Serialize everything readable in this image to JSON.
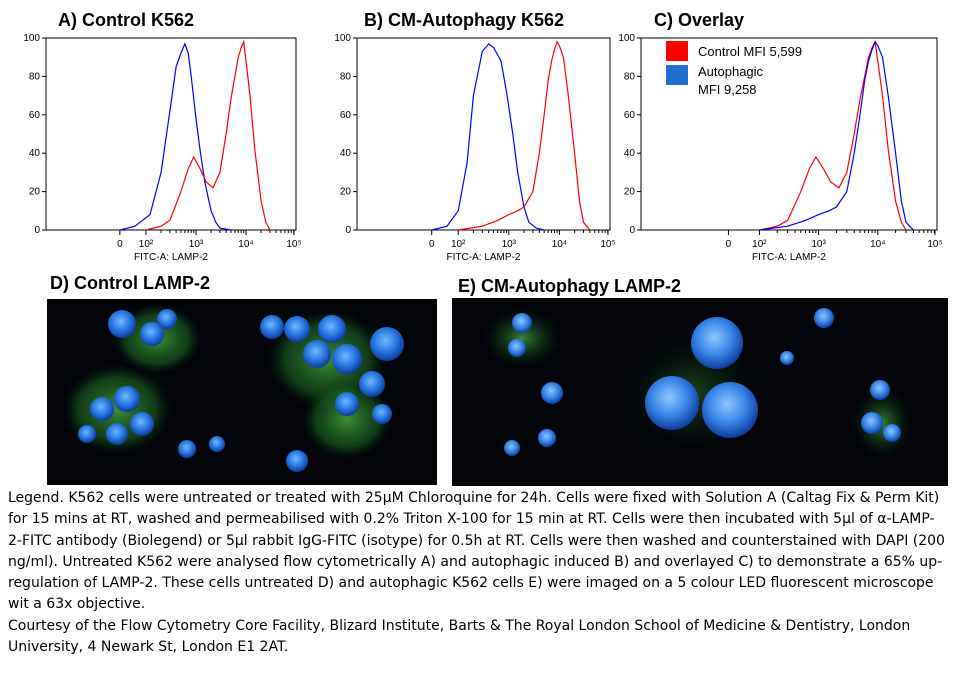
{
  "panels": {
    "a_title": "A) Control  K562",
    "b_title": "B) CM-Autophagy   K562",
    "c_title": "C) Overlay",
    "d_title": "D) Control  LAMP-2",
    "e_title": "E) CM-Autophagy  LAMP-2"
  },
  "overlay_legend": {
    "control_label": "Control MFI  5,599",
    "autophagic_label_line1": "Autophagic",
    "autophagic_label_line2": "MFI 9,258",
    "control_color": "#ff0000",
    "autophagic_color": "#1f6fd0"
  },
  "chart_data": [
    {
      "type": "line",
      "title": "A) Control  K562",
      "xlabel": "FITC-A: LAMP-2",
      "ylabel": "",
      "x_scale": "log",
      "xlim": [
        1,
        100000
      ],
      "ylim": [
        0,
        100
      ],
      "x_tick_labels": [
        "0",
        "10²",
        "10³",
        "10⁴",
        "10⁵"
      ],
      "y_tick_labels": [
        "0",
        "20",
        "40",
        "60",
        "80",
        "100"
      ],
      "series": [
        {
          "color": "#0000ff",
          "x": [
            30,
            60,
            120,
            200,
            300,
            400,
            500,
            600,
            700,
            800,
            1000,
            1200,
            1500,
            2000,
            2500,
            3000,
            5000
          ],
          "y": [
            0,
            2,
            8,
            30,
            62,
            85,
            92,
            97,
            92,
            80,
            58,
            42,
            25,
            10,
            4,
            1,
            0
          ]
        },
        {
          "color": "#ff0000",
          "x": [
            100,
            200,
            300,
            500,
            700,
            900,
            1200,
            1600,
            2200,
            3000,
            4000,
            5000,
            6000,
            7000,
            8000,
            9000,
            10000,
            12000,
            15000,
            20000,
            25000,
            30000
          ],
          "y": [
            0,
            2,
            5,
            20,
            32,
            38,
            32,
            25,
            22,
            30,
            50,
            68,
            80,
            90,
            95,
            98,
            88,
            70,
            42,
            15,
            4,
            0
          ]
        }
      ]
    },
    {
      "type": "line",
      "title": "B) CM-Autophagy   K562",
      "xlabel": "FITC-A: LAMP-2",
      "ylabel": "",
      "x_scale": "log",
      "xlim": [
        1,
        100000
      ],
      "ylim": [
        0,
        100
      ],
      "x_tick_labels": [
        "0",
        "10²",
        "10³",
        "10⁴",
        "10⁵"
      ],
      "y_tick_labels": [
        "0",
        "20",
        "40",
        "60",
        "80",
        "100"
      ],
      "series": [
        {
          "color": "#0000ff",
          "x": [
            30,
            60,
            100,
            150,
            200,
            300,
            400,
            500,
            700,
            900,
            1200,
            1500,
            2000,
            2500,
            3500,
            5000
          ],
          "y": [
            0,
            2,
            10,
            35,
            70,
            93,
            97,
            95,
            88,
            72,
            50,
            30,
            12,
            4,
            1,
            0
          ]
        },
        {
          "color": "#ff0000",
          "x": [
            100,
            300,
            600,
            1000,
            1500,
            2000,
            3000,
            4000,
            5000,
            6000,
            7000,
            8000,
            9000,
            10000,
            12000,
            15000,
            20000,
            25000,
            30000,
            40000
          ],
          "y": [
            0,
            2,
            5,
            8,
            10,
            12,
            20,
            40,
            60,
            78,
            88,
            94,
            98,
            96,
            90,
            70,
            40,
            15,
            4,
            0
          ]
        }
      ]
    },
    {
      "type": "line",
      "title": "C) Overlay",
      "xlabel": "FITC-A: LAMP-2",
      "ylabel": "",
      "x_scale": "log",
      "xlim": [
        1,
        100000
      ],
      "ylim": [
        0,
        100
      ],
      "x_tick_labels": [
        "0",
        "10²",
        "10³",
        "10⁴",
        "10⁵"
      ],
      "y_tick_labels": [
        "0",
        "20",
        "40",
        "60",
        "80",
        "100"
      ],
      "series": [
        {
          "name": "Control MFI  5,599",
          "color": "#ff0000",
          "x": [
            100,
            200,
            300,
            500,
            700,
            900,
            1200,
            1600,
            2200,
            3000,
            4000,
            5000,
            6000,
            7000,
            8000,
            9000,
            10000,
            12000,
            15000,
            20000,
            25000,
            30000
          ],
          "y": [
            0,
            2,
            5,
            20,
            32,
            38,
            32,
            25,
            22,
            30,
            50,
            68,
            80,
            90,
            95,
            98,
            88,
            70,
            42,
            15,
            4,
            0
          ]
        },
        {
          "name": "Autophagic MFI 9,258",
          "color": "#0000ff",
          "x": [
            100,
            300,
            600,
            1000,
            1500,
            2000,
            3000,
            4000,
            5000,
            6000,
            7000,
            8000,
            9000,
            10000,
            12000,
            15000,
            20000,
            25000,
            30000,
            40000
          ],
          "y": [
            0,
            2,
            5,
            8,
            10,
            12,
            20,
            40,
            60,
            78,
            88,
            94,
            98,
            96,
            90,
            70,
            40,
            15,
            4,
            0
          ]
        }
      ]
    }
  ],
  "legend_paragraphs": [
    "Legend. K562 cells were untreated or treated with 25µM Chloroquine for 24h. Cells were fixed with Solution A (Caltag Fix & Perm Kit) for 15 mins at RT, washed and permeabilised with 0.2% Triton X-100 for 15 min at RT. Cells were then incubated with 5µl of α-LAMP-2-FITC antibody (Biolegend) or 5µl rabbit IgG-FITC (isotype) for 0.5h at RT. Cells were then washed and counterstained with DAPI (200 ng/ml). Untreated K562 were analysed flow cytometrically A) and autophagic induced B) and overlayed C) to demonstrate a 65% up-regulation of LAMP-2. These cells untreated D) and autophagic K562 cells E) were imaged on a 5 colour LED fluorescent microscope wit a 63x objective.",
    "Courtesy of the Flow Cytometry Core Facility, Blizard Institute, Barts & The Royal London School of Medicine & Dentistry, London University, 4 Newark St, London E1 2AT."
  ]
}
